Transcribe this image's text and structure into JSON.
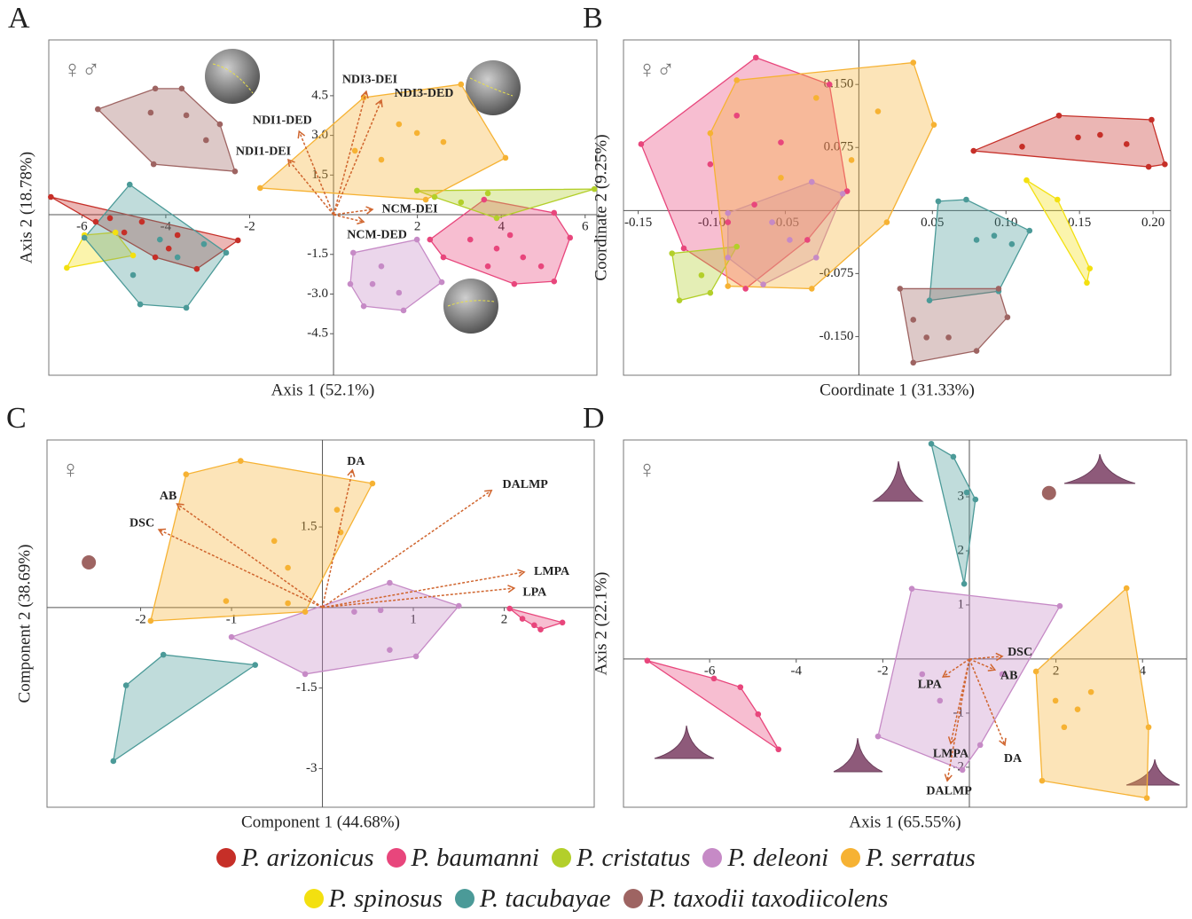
{
  "chart_data": [
    {
      "type": "scatter",
      "panel": "A",
      "symbol": "♀♂",
      "xlabel": "Axis 1 (52.1%)",
      "ylabel": "Axis 2 (18.78%)",
      "xlim": [
        -6.79,
        6.28
      ],
      "ylim": [
        -6.07,
        6.61
      ],
      "xticks": [
        -6,
        -4,
        -2,
        2,
        4,
        6
      ],
      "yticks": [
        4.5,
        {
          "value": 3,
          "label": "3.0"
        },
        1.5,
        -1.5,
        {
          "value": -3,
          "label": "-3.0"
        },
        -4.5
      ],
      "series": [
        {
          "x": [
            -6.74,
            -5.33,
            -4.57,
            -4.25,
            -3.93,
            -3.72,
            -2.28,
            -3.26,
            -5.67,
            -4.99
          ],
          "values": [
            0.67,
            -0.13,
            -0.27,
            -1.61,
            -1.28,
            -0.77,
            -0.97,
            -2.05,
            -0.27,
            -0.67
          ]
        },
        {
          "x": [
            2.3,
            3.59,
            5.26,
            5.64,
            5.26,
            4.31,
            2.62,
            3.26,
            3.89,
            4.52,
            4.95,
            3.68,
            4.21
          ],
          "values": [
            -0.94,
            0.57,
            0.07,
            -0.87,
            -2.52,
            -2.62,
            -1.61,
            -0.94,
            -1.28,
            -1.61,
            -1.95,
            -1.95,
            -0.77
          ]
        },
        {
          "x": [
            1.99,
            6.22,
            3.89,
            3.04,
            2.41,
            3.68
          ],
          "values": [
            0.91,
            0.97,
            -0.13,
            0.47,
            0.67,
            0.81
          ]
        },
        {
          "x": [
            0.47,
            1.99,
            2.58,
            1.67,
            0.72,
            0.4,
            1.14,
            1.56,
            0.93
          ],
          "values": [
            -1.44,
            -0.94,
            -2.55,
            -3.62,
            -3.46,
            -2.62,
            -1.95,
            -2.95,
            -2.62
          ]
        },
        {
          "x": [
            -1.75,
            0.72,
            3.04,
            4.1,
            2.2,
            1.14,
            1.99,
            0.51,
            2.62,
            1.56
          ],
          "values": [
            1.01,
            4.43,
            4.93,
            2.15,
            0.57,
            2.08,
            3.09,
            2.42,
            2.75,
            3.42
          ]
        },
        {
          "x": [
            -6.36,
            -5.94,
            -5.2,
            -4.78
          ],
          "values": [
            -2.01,
            -0.77,
            -0.67,
            -1.54
          ]
        },
        {
          "x": [
            -4.86,
            -2.56,
            -3.51,
            -4.61,
            -5.94,
            -4.14,
            -3.72,
            -3.09,
            -4.78
          ],
          "values": [
            1.14,
            -1.44,
            -3.52,
            -3.39,
            -0.87,
            -0.94,
            -1.61,
            -1.11,
            -2.28
          ]
        },
        {
          "x": [
            -5.62,
            -4.25,
            -3.62,
            -2.71,
            -2.35,
            -4.29,
            -4.36,
            -3.51,
            -3.04
          ],
          "values": [
            3.99,
            4.77,
            4.77,
            3.42,
            1.64,
            1.91,
            3.86,
            3.76,
            2.82
          ]
        }
      ],
      "vectors": [
        {
          "label": "NDI3-DEI",
          "x": 0.78,
          "y": 4.66
        },
        {
          "label": "NDI3-DED",
          "x": 1.14,
          "y": 4.33
        },
        {
          "label": "NDI1-DED",
          "x": -0.82,
          "y": 3.15
        },
        {
          "label": "NDI1-DEI",
          "x": -1.08,
          "y": 2.08
        },
        {
          "label": "NCM-DEI",
          "x": 0.93,
          "y": 0.2
        },
        {
          "label": "NCM-DED",
          "x": 0.72,
          "y": -0.27
        }
      ]
    },
    {
      "type": "scatter",
      "panel": "B",
      "symbol": "♀♂",
      "xlabel": "Coordinate 1 (31.33%)",
      "ylabel": "Coordinate 2 (9.25%)",
      "xlim": [
        -0.16,
        0.212
      ],
      "ylim": [
        -0.196,
        0.203
      ],
      "xticks": [
        -0.15,
        {
          "value": -0.1,
          "label": "-0.10"
        },
        -0.05,
        0.05,
        {
          "value": 0.1,
          "label": "0.10"
        },
        0.15,
        {
          "value": 0.2,
          "label": "0.20"
        }
      ],
      "yticks": [
        {
          "value": 0.15,
          "label": "0.150"
        },
        0.075,
        -0.075,
        {
          "value": -0.15,
          "label": "-0.150"
        }
      ],
      "series": [
        {
          "x": [
            0.078,
            0.136,
            0.199,
            0.208,
            0.197,
            0.111,
            0.149,
            0.164,
            0.182
          ],
          "values": [
            0.071,
            0.113,
            0.108,
            0.055,
            0.052,
            0.076,
            0.087,
            0.09,
            0.079
          ]
        },
        {
          "x": [
            -0.148,
            -0.07,
            -0.02,
            -0.008,
            -0.035,
            -0.077,
            -0.119,
            -0.101,
            -0.083,
            -0.053,
            -0.071,
            -0.089
          ],
          "values": [
            0.079,
            0.182,
            0.15,
            0.023,
            -0.035,
            -0.093,
            -0.045,
            0.055,
            0.113,
            0.081,
            0.007,
            -0.014
          ]
        },
        {
          "x": [
            -0.127,
            -0.083,
            -0.107,
            -0.122,
            -0.101
          ],
          "values": [
            -0.051,
            -0.043,
            -0.077,
            -0.107,
            -0.098
          ]
        },
        {
          "x": [
            -0.089,
            -0.032,
            -0.011,
            -0.029,
            -0.065,
            -0.089,
            -0.059,
            -0.047
          ],
          "values": [
            -0.003,
            0.034,
            0.02,
            -0.056,
            -0.088,
            -0.056,
            -0.014,
            -0.035
          ]
        },
        {
          "x": [
            -0.083,
            0.037,
            0.051,
            0.019,
            -0.032,
            -0.089,
            -0.101,
            -0.029,
            -0.005,
            0.013,
            -0.053
          ],
          "values": [
            0.155,
            0.176,
            0.102,
            -0.014,
            -0.093,
            -0.09,
            0.092,
            0.134,
            0.06,
            0.118,
            0.039
          ]
        },
        {
          "x": [
            0.114,
            0.135,
            0.157,
            0.155
          ],
          "values": [
            0.036,
            0.013,
            -0.069,
            -0.086
          ]
        },
        {
          "x": [
            0.054,
            0.073,
            0.116,
            0.095,
            0.048,
            0.08,
            0.092,
            0.104
          ],
          "values": [
            0.011,
            0.013,
            -0.024,
            -0.096,
            -0.107,
            -0.035,
            -0.03,
            -0.04
          ]
        },
        {
          "x": [
            0.028,
            0.095,
            0.101,
            0.08,
            0.037,
            0.046,
            0.061,
            0.037
          ],
          "values": [
            -0.093,
            -0.093,
            -0.127,
            -0.167,
            -0.181,
            -0.151,
            -0.151,
            -0.13
          ]
        }
      ],
      "vectors": []
    },
    {
      "type": "scatter",
      "panel": "C",
      "symbol": "♀",
      "xlabel": "Component 1 (44.68%)",
      "ylabel": "Component 2 (38.69%)",
      "xlim": [
        -3.03,
        2.99
      ],
      "ylim": [
        -3.72,
        3.12
      ],
      "xticks": [
        -2,
        -1,
        1,
        2
      ],
      "yticks": [
        1.5,
        -1.5,
        -3
      ],
      "series": [
        null,
        {
          "x": [
            2.06,
            2.64,
            2.4,
            2.2,
            2.33
          ],
          "values": [
            -0.02,
            -0.28,
            -0.41,
            -0.21,
            -0.33
          ]
        },
        null,
        {
          "x": [
            -1.0,
            0.74,
            1.5,
            1.03,
            -0.19,
            0.74,
            0.35,
            0.64
          ],
          "values": [
            -0.55,
            0.46,
            0.03,
            -0.91,
            -1.24,
            -0.79,
            -0.08,
            -0.05
          ]
        },
        {
          "x": [
            -1.89,
            -1.5,
            -0.9,
            0.55,
            -0.19,
            -0.53,
            -0.38,
            0.16,
            0.2,
            -1.06,
            -0.38
          ],
          "values": [
            -0.25,
            2.48,
            2.73,
            2.31,
            -0.08,
            1.24,
            0.74,
            1.82,
            1.4,
            0.12,
            0.08
          ]
        },
        null,
        {
          "x": [
            -1.75,
            -0.74,
            -2.3,
            -2.16
          ],
          "values": [
            -0.88,
            -1.07,
            -2.86,
            -1.45
          ]
        },
        {
          "x": [
            -2.57
          ],
          "values": [
            0.84
          ]
        }
      ],
      "vectors": [
        {
          "label": "DA",
          "x": 0.33,
          "y": 2.56
        },
        {
          "label": "DALMP",
          "x": 1.86,
          "y": 2.18
        },
        {
          "label": "AB",
          "x": -1.6,
          "y": 1.93
        },
        {
          "label": "DSC",
          "x": -1.8,
          "y": 1.45
        },
        {
          "label": "LMPA",
          "x": 2.22,
          "y": 0.66
        },
        {
          "label": "LPA",
          "x": 2.11,
          "y": 0.36
        }
      ]
    },
    {
      "type": "scatter",
      "panel": "D",
      "symbol": "♀",
      "xlabel": "Axis 1 (65.55%)",
      "ylabel": "Axis 2 (22.1%)",
      "xlim": [
        -7.99,
        5.02
      ],
      "ylim": [
        -2.74,
        4.05
      ],
      "xticks": [
        -6,
        -4,
        -2,
        2,
        4
      ],
      "yticks": [
        3,
        2,
        1,
        -1,
        -2
      ],
      "series": [
        null,
        {
          "x": [
            -7.44,
            -5.9,
            -5.29,
            -4.41,
            -4.88
          ],
          "values": [
            -0.03,
            -0.36,
            -0.52,
            -1.67,
            -1.02
          ]
        },
        null,
        {
          "x": [
            -1.33,
            2.09,
            0.25,
            -0.16,
            -2.11,
            -1.09,
            -0.68,
            0.76
          ],
          "values": [
            1.3,
            0.98,
            -1.59,
            -2.05,
            -1.43,
            -0.28,
            -0.77,
            -0.28
          ]
        },
        {
          "x": [
            1.54,
            3.63,
            4.14,
            4.1,
            1.68,
            1.99,
            2.5,
            2.81,
            2.19
          ],
          "values": [
            -0.23,
            1.31,
            -1.26,
            -2.57,
            -2.25,
            -0.77,
            -0.93,
            -0.61,
            -1.26
          ]
        },
        null,
        {
          "x": [
            -0.88,
            -0.37,
            0.14,
            -0.12,
            -0.06
          ],
          "values": [
            3.98,
            3.74,
            2.95,
            1.39,
            3.08
          ]
        },
        {
          "x": [
            1.84
          ],
          "values": [
            3.07
          ]
        }
      ],
      "vectors": [
        {
          "label": "DSC",
          "x": 0.76,
          "y": 0.05
        },
        {
          "label": "AB",
          "x": 0.59,
          "y": -0.2
        },
        {
          "label": "DA",
          "x": 0.82,
          "y": -1.59
        },
        {
          "label": "LPA",
          "x": -0.61,
          "y": -0.33
        },
        {
          "label": "LMPA",
          "x": -0.43,
          "y": -1.56
        },
        {
          "label": "DALMP",
          "x": -0.51,
          "y": -2.25
        }
      ]
    }
  ],
  "legend": {
    "items": [
      {
        "name": "P. arizonicus",
        "color": "#c62f28"
      },
      {
        "name": "P. baumanni",
        "color": "#e8467c"
      },
      {
        "name": "P. cristatus",
        "color": "#b3cf2a"
      },
      {
        "name": "P. deleoni",
        "color": "#c68ac6"
      },
      {
        "name": "P. serratus",
        "color": "#f6b233"
      },
      {
        "name": "P. spinosus",
        "color": "#f3e010"
      },
      {
        "name": "P. tacubayae",
        "color": "#4b9a98"
      },
      {
        "name": "P. taxodii taxodiicolens",
        "color": "#9e6462"
      }
    ]
  }
}
